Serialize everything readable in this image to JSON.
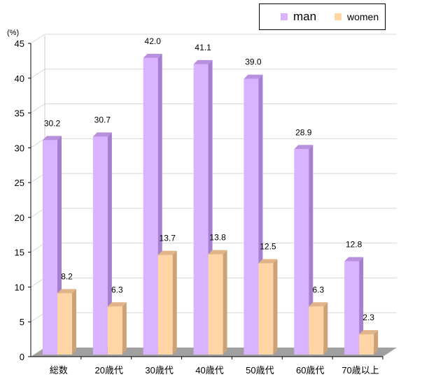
{
  "chart_data": {
    "type": "bar",
    "unit_label": "(%)",
    "categories": [
      "総数",
      "20歳代",
      "30歳代",
      "40歳代",
      "50歳代",
      "60歳代",
      "70歳以上"
    ],
    "series": [
      {
        "name": "man",
        "values": [
          30.2,
          30.7,
          42.0,
          41.1,
          39.0,
          28.9,
          12.8
        ]
      },
      {
        "name": "women",
        "values": [
          8.2,
          6.3,
          13.7,
          13.8,
          12.5,
          6.3,
          2.3
        ]
      }
    ],
    "ylim": [
      0,
      45
    ],
    "yticks": [
      "0",
      "5",
      "10",
      "15",
      "20",
      "25",
      "30",
      "35",
      "40",
      "45"
    ],
    "grid": true,
    "legend_position": "top-right",
    "colors": {
      "man": "#d9b3ff",
      "man_side": "#a67fce",
      "man_top": "#b890de",
      "women": "#ffd5a6",
      "women_side": "#cca277",
      "women_top": "#e0b58a",
      "floor": "#a0a0a0",
      "grid": "#d8d8d8"
    }
  }
}
